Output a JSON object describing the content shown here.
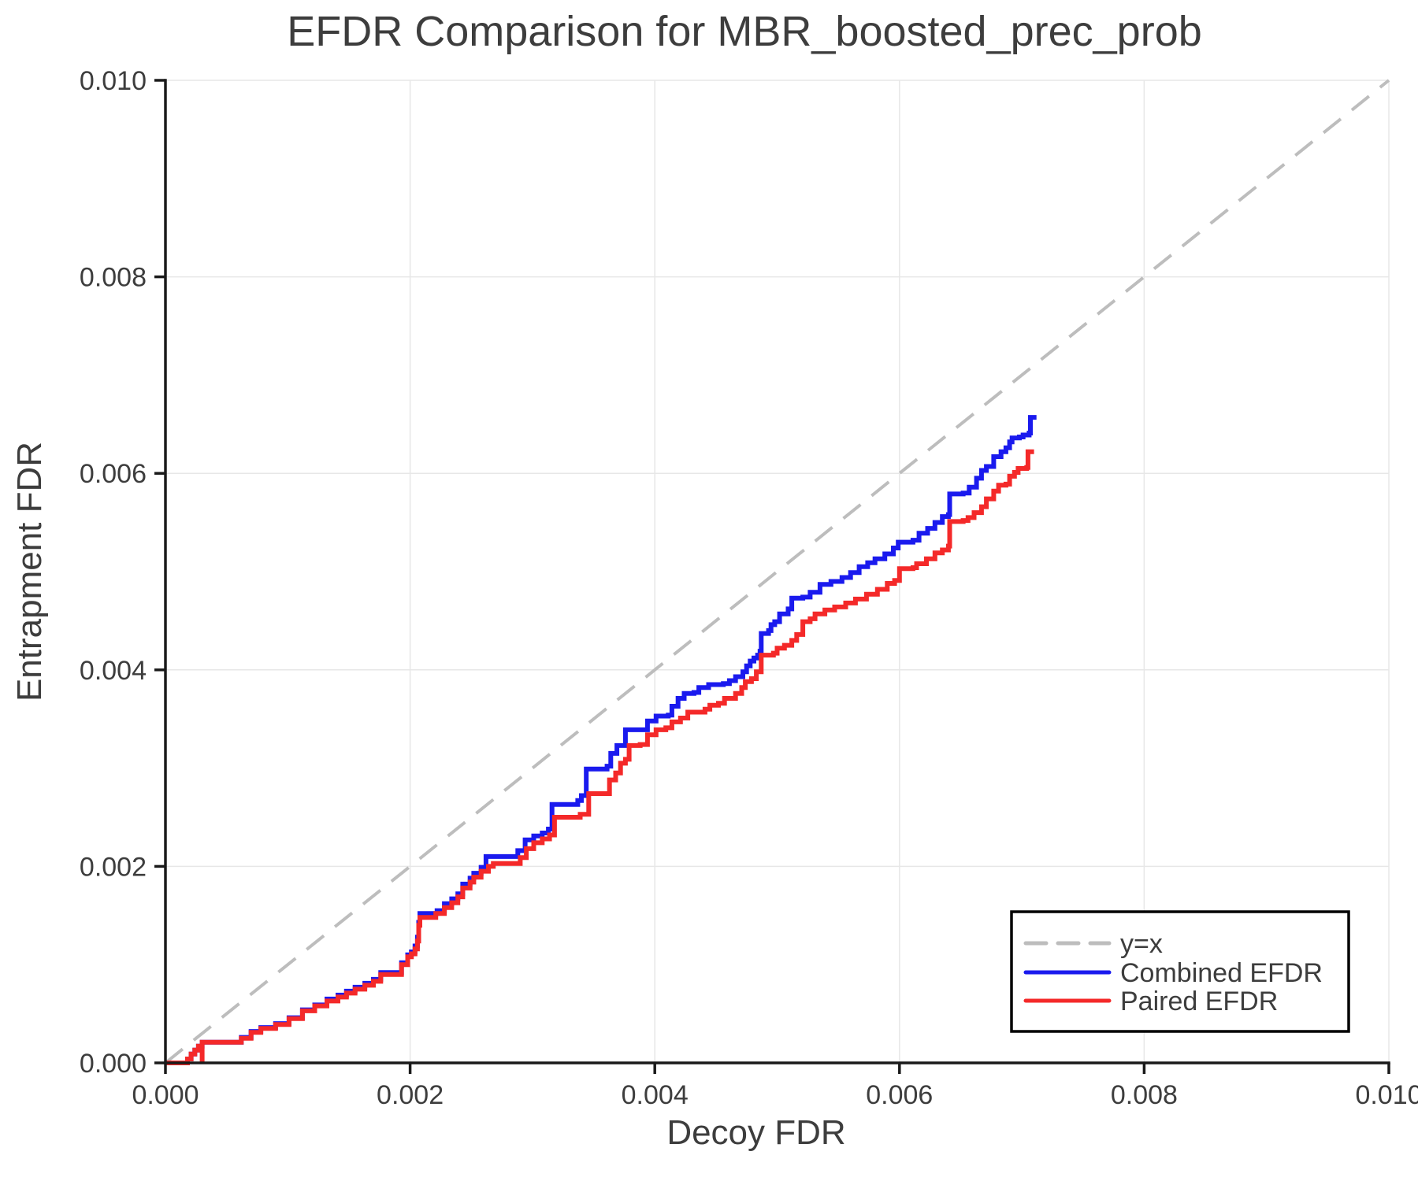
{
  "chart_data": {
    "type": "line",
    "title": "EFDR Comparison for MBR_boosted_prec_prob",
    "xlabel": "Decoy FDR",
    "ylabel": "Entrapment FDR",
    "xlim": [
      0.0,
      0.01
    ],
    "ylim": [
      0.0,
      0.01
    ],
    "grid": true,
    "legend_position": "lower right",
    "x_ticks": {
      "values": [
        0.0,
        0.002,
        0.004,
        0.006,
        0.008,
        0.01
      ],
      "labels": [
        "0.000",
        "0.002",
        "0.004",
        "0.006",
        "0.008",
        "0.010"
      ]
    },
    "y_ticks": {
      "values": [
        0.0,
        0.002,
        0.004,
        0.006,
        0.008,
        0.01
      ],
      "labels": [
        "0.000",
        "0.002",
        "0.004",
        "0.006",
        "0.008",
        "0.010"
      ]
    },
    "colors": {
      "grid": "#e7e7e7",
      "spine": "#1a1a1a",
      "text": "#3d3d3d",
      "reference": "#bdbdbd",
      "combined": "#1a1aee",
      "paired": "#f42929"
    },
    "legend": [
      {
        "label": "y=x"
      },
      {
        "label": "Combined EFDR"
      },
      {
        "label": "Paired EFDR"
      }
    ],
    "reference_line": {
      "name": "y=x",
      "style": "dashed",
      "color": "#bdbdbd",
      "from": [
        0.0,
        0.0
      ],
      "to": [
        0.01,
        0.01
      ]
    },
    "series": [
      {
        "name": "Combined EFDR",
        "color": "#1a1aee",
        "step": "post",
        "points": [
          [
            0.0,
            0.0
          ],
          [
            0.00015,
            0.0
          ],
          [
            0.00018,
            4e-05
          ],
          [
            0.00021,
            9e-05
          ],
          [
            0.00024,
            0.00013
          ],
          [
            0.00027,
            0.00017
          ],
          [
            0.0003,
            0.00021
          ],
          [
            0.00056,
            0.00021
          ],
          [
            0.00062,
            0.00026
          ],
          [
            0.0007,
            0.00032
          ],
          [
            0.00078,
            0.00036
          ],
          [
            0.0009,
            0.0004
          ],
          [
            0.00101,
            0.00046
          ],
          [
            0.00112,
            0.00054
          ],
          [
            0.00122,
            0.00059
          ],
          [
            0.00132,
            0.00065
          ],
          [
            0.00141,
            0.00069
          ],
          [
            0.00148,
            0.00073
          ],
          [
            0.00155,
            0.00077
          ],
          [
            0.00163,
            0.00081
          ],
          [
            0.0017,
            0.00085
          ],
          [
            0.00176,
            0.00092
          ],
          [
            0.00188,
            0.00092
          ],
          [
            0.00193,
            0.00102
          ],
          [
            0.00198,
            0.0011
          ],
          [
            0.00201,
            0.00113
          ],
          [
            0.00204,
            0.00119
          ],
          [
            0.00206,
            0.00128
          ],
          [
            0.00207,
            0.00143
          ],
          [
            0.00208,
            0.00152
          ],
          [
            0.00222,
            0.00155
          ],
          [
            0.00228,
            0.00162
          ],
          [
            0.00234,
            0.00167
          ],
          [
            0.00239,
            0.00172
          ],
          [
            0.00243,
            0.00182
          ],
          [
            0.00249,
            0.00188
          ],
          [
            0.00252,
            0.00193
          ],
          [
            0.00258,
            0.00199
          ],
          [
            0.00262,
            0.0021
          ],
          [
            0.00283,
            0.0021
          ],
          [
            0.00288,
            0.00216
          ],
          [
            0.00294,
            0.00227
          ],
          [
            0.00301,
            0.00231
          ],
          [
            0.00308,
            0.00234
          ],
          [
            0.00313,
            0.00238
          ],
          [
            0.00316,
            0.00263
          ],
          [
            0.00337,
            0.00267
          ],
          [
            0.0034,
            0.00272
          ],
          [
            0.00344,
            0.00299
          ],
          [
            0.00361,
            0.00302
          ],
          [
            0.00364,
            0.00315
          ],
          [
            0.00369,
            0.00323
          ],
          [
            0.00376,
            0.00339
          ],
          [
            0.00388,
            0.00339
          ],
          [
            0.00394,
            0.00348
          ],
          [
            0.00401,
            0.00353
          ],
          [
            0.00411,
            0.00354
          ],
          [
            0.00414,
            0.00363
          ],
          [
            0.00419,
            0.00371
          ],
          [
            0.00424,
            0.00376
          ],
          [
            0.00432,
            0.00377
          ],
          [
            0.00436,
            0.00382
          ],
          [
            0.00444,
            0.00385
          ],
          [
            0.00456,
            0.00386
          ],
          [
            0.00461,
            0.00389
          ],
          [
            0.00466,
            0.00393
          ],
          [
            0.00472,
            0.00398
          ],
          [
            0.00475,
            0.00404
          ],
          [
            0.00478,
            0.00409
          ],
          [
            0.00481,
            0.00412
          ],
          [
            0.00484,
            0.00415
          ],
          [
            0.00486,
            0.00419
          ],
          [
            0.00487,
            0.00437
          ],
          [
            0.00493,
            0.0044
          ],
          [
            0.00495,
            0.00446
          ],
          [
            0.00498,
            0.00449
          ],
          [
            0.00502,
            0.00457
          ],
          [
            0.00509,
            0.00462
          ],
          [
            0.00512,
            0.00473
          ],
          [
            0.00521,
            0.00474
          ],
          [
            0.00527,
            0.00479
          ],
          [
            0.00535,
            0.00487
          ],
          [
            0.00544,
            0.0049
          ],
          [
            0.00553,
            0.00494
          ],
          [
            0.0056,
            0.00499
          ],
          [
            0.00567,
            0.00505
          ],
          [
            0.00574,
            0.00509
          ],
          [
            0.0058,
            0.00513
          ],
          [
            0.00588,
            0.00518
          ],
          [
            0.00595,
            0.00524
          ],
          [
            0.00599,
            0.0053
          ],
          [
            0.00611,
            0.00532
          ],
          [
            0.00616,
            0.00539
          ],
          [
            0.00623,
            0.00544
          ],
          [
            0.00629,
            0.0055
          ],
          [
            0.00635,
            0.00556
          ],
          [
            0.0064,
            0.00558
          ],
          [
            0.00641,
            0.00579
          ],
          [
            0.00652,
            0.0058
          ],
          [
            0.00657,
            0.00586
          ],
          [
            0.00663,
            0.00595
          ],
          [
            0.00667,
            0.00603
          ],
          [
            0.00671,
            0.00607
          ],
          [
            0.00677,
            0.00617
          ],
          [
            0.00683,
            0.00622
          ],
          [
            0.00687,
            0.00626
          ],
          [
            0.0069,
            0.00632
          ],
          [
            0.00692,
            0.00636
          ],
          [
            0.00698,
            0.00637
          ],
          [
            0.00701,
            0.00639
          ],
          [
            0.00706,
            0.00641
          ],
          [
            0.00707,
            0.00657
          ],
          [
            0.00712,
            0.00657
          ]
        ]
      },
      {
        "name": "Paired EFDR",
        "color": "#f42929",
        "step": "post",
        "points": [
          [
            0.0,
            0.0
          ],
          [
            0.00015,
            0.0
          ],
          [
            0.00018,
            4e-05
          ],
          [
            0.00021,
            9e-05
          ],
          [
            0.00024,
            0.00013
          ],
          [
            0.00027,
            0.00017
          ],
          [
            0.0003,
            0.00021
          ],
          [
            0.0003,
            0.0
          ],
          [
            0.0003,
            0.00021
          ],
          [
            0.00056,
            0.00021
          ],
          [
            0.00062,
            0.00025
          ],
          [
            0.0007,
            0.00031
          ],
          [
            0.00078,
            0.00035
          ],
          [
            0.0009,
            0.00039
          ],
          [
            0.00101,
            0.00045
          ],
          [
            0.00112,
            0.00053
          ],
          [
            0.00122,
            0.00058
          ],
          [
            0.00132,
            0.00063
          ],
          [
            0.00141,
            0.00067
          ],
          [
            0.00148,
            0.00071
          ],
          [
            0.00155,
            0.00075
          ],
          [
            0.00163,
            0.00079
          ],
          [
            0.0017,
            0.00083
          ],
          [
            0.00176,
            0.0009
          ],
          [
            0.00188,
            0.0009
          ],
          [
            0.00193,
            0.001
          ],
          [
            0.00198,
            0.00108
          ],
          [
            0.00201,
            0.00111
          ],
          [
            0.00204,
            0.00116
          ],
          [
            0.00206,
            0.00124
          ],
          [
            0.00207,
            0.0014
          ],
          [
            0.00208,
            0.00148
          ],
          [
            0.00221,
            0.00152
          ],
          [
            0.00228,
            0.00158
          ],
          [
            0.00234,
            0.00163
          ],
          [
            0.00239,
            0.00169
          ],
          [
            0.00243,
            0.00178
          ],
          [
            0.00249,
            0.00184
          ],
          [
            0.00252,
            0.00189
          ],
          [
            0.00258,
            0.00195
          ],
          [
            0.00264,
            0.002
          ],
          [
            0.00268,
            0.00203
          ],
          [
            0.00285,
            0.00203
          ],
          [
            0.0029,
            0.00209
          ],
          [
            0.00295,
            0.00218
          ],
          [
            0.00301,
            0.00224
          ],
          [
            0.00308,
            0.00228
          ],
          [
            0.00314,
            0.00232
          ],
          [
            0.00318,
            0.0025
          ],
          [
            0.00339,
            0.00253
          ],
          [
            0.00346,
            0.00274
          ],
          [
            0.00363,
            0.00288
          ],
          [
            0.00368,
            0.00295
          ],
          [
            0.00372,
            0.00305
          ],
          [
            0.00376,
            0.00309
          ],
          [
            0.00379,
            0.00323
          ],
          [
            0.00388,
            0.00324
          ],
          [
            0.00394,
            0.00334
          ],
          [
            0.00401,
            0.00339
          ],
          [
            0.00409,
            0.00341
          ],
          [
            0.00414,
            0.00347
          ],
          [
            0.00421,
            0.00351
          ],
          [
            0.00427,
            0.00357
          ],
          [
            0.00441,
            0.0036
          ],
          [
            0.00445,
            0.00364
          ],
          [
            0.00452,
            0.00366
          ],
          [
            0.00457,
            0.00371
          ],
          [
            0.00466,
            0.00376
          ],
          [
            0.00471,
            0.00382
          ],
          [
            0.00474,
            0.00388
          ],
          [
            0.00479,
            0.00391
          ],
          [
            0.00483,
            0.00398
          ],
          [
            0.00487,
            0.00415
          ],
          [
            0.00497,
            0.00417
          ],
          [
            0.005,
            0.00422
          ],
          [
            0.00506,
            0.00425
          ],
          [
            0.00512,
            0.0043
          ],
          [
            0.00516,
            0.00436
          ],
          [
            0.00521,
            0.00449
          ],
          [
            0.00527,
            0.00452
          ],
          [
            0.00531,
            0.00457
          ],
          [
            0.00539,
            0.00461
          ],
          [
            0.00547,
            0.00464
          ],
          [
            0.00556,
            0.00468
          ],
          [
            0.00564,
            0.00472
          ],
          [
            0.00573,
            0.00477
          ],
          [
            0.00582,
            0.00482
          ],
          [
            0.0059,
            0.00488
          ],
          [
            0.00596,
            0.00491
          ],
          [
            0.006,
            0.00503
          ],
          [
            0.00611,
            0.00504
          ],
          [
            0.00614,
            0.00508
          ],
          [
            0.00622,
            0.00513
          ],
          [
            0.00629,
            0.00519
          ],
          [
            0.00635,
            0.00522
          ],
          [
            0.0064,
            0.00526
          ],
          [
            0.00641,
            0.00551
          ],
          [
            0.00652,
            0.00552
          ],
          [
            0.00656,
            0.00555
          ],
          [
            0.00661,
            0.0056
          ],
          [
            0.00667,
            0.00566
          ],
          [
            0.00671,
            0.00574
          ],
          [
            0.00677,
            0.00582
          ],
          [
            0.00681,
            0.00588
          ],
          [
            0.00687,
            0.00589
          ],
          [
            0.0069,
            0.00597
          ],
          [
            0.00694,
            0.00601
          ],
          [
            0.00697,
            0.00605
          ],
          [
            0.00704,
            0.00606
          ],
          [
            0.00705,
            0.00622
          ],
          [
            0.0071,
            0.00622
          ]
        ]
      }
    ]
  }
}
